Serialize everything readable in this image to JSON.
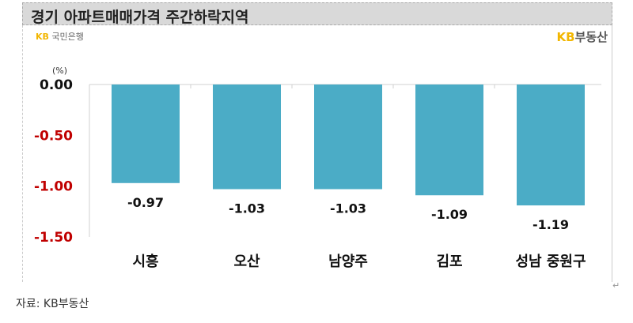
{
  "header": {
    "title": "경기 아파트매매가격 주간하락지역"
  },
  "logos": {
    "kb_bank_mark": "KB",
    "kb_bank_text": "국민은행",
    "kb_realestate_mark": "KB",
    "kb_realestate_text": "부동산"
  },
  "footer": {
    "source": "자료: KB부동산"
  },
  "chart_data": {
    "type": "bar",
    "ylabel": "(%)",
    "categories": [
      "시흥",
      "오산",
      "남양주",
      "김포",
      "성남 중원구"
    ],
    "values": [
      -0.97,
      -1.03,
      -1.03,
      -1.09,
      -1.19
    ],
    "data_labels": [
      "-0.97",
      "-1.03",
      "-1.03",
      "-1.09",
      "-1.19"
    ],
    "yticks": [
      "0.00",
      "-0.50",
      "-1.00",
      "-1.50"
    ],
    "ylim": [
      -1.5,
      0
    ],
    "bar_color": "#4bacc6",
    "negative_tick_color": "#c00000",
    "grid": false
  }
}
